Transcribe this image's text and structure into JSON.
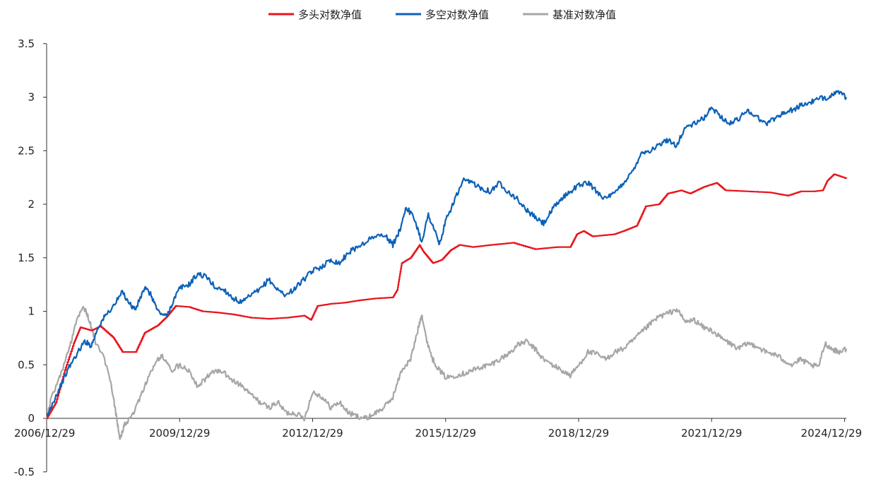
{
  "chart_data": {
    "type": "line",
    "title": "",
    "xlabel": "",
    "ylabel": "",
    "ylim": [
      -0.5,
      3.5
    ],
    "yticks": [
      "-0.5",
      "0",
      "0.5",
      "1",
      "1.5",
      "2",
      "2.5",
      "3",
      "3.5"
    ],
    "xlim": [
      2006.99,
      2025.03
    ],
    "xticks": [
      {
        "label": "2006/12/29",
        "x": 2006.99
      },
      {
        "label": "2009/12/29",
        "x": 2009.99
      },
      {
        "label": "2012/12/29",
        "x": 2012.99
      },
      {
        "label": "2015/12/29",
        "x": 2015.99
      },
      {
        "label": "2018/12/29",
        "x": 2018.99
      },
      {
        "label": "2021/12/29",
        "x": 2021.99
      },
      {
        "label": "2024/12/29",
        "x": 2024.99
      }
    ],
    "legend": {
      "position": "top-center"
    },
    "grid": false,
    "series": [
      {
        "name": "多头对数净值",
        "color": "#e8141b",
        "points": [
          [
            2006.99,
            0.0
          ],
          [
            2007.2,
            0.15
          ],
          [
            2007.4,
            0.45
          ],
          [
            2007.6,
            0.7
          ],
          [
            2007.75,
            0.85
          ],
          [
            2008.0,
            0.82
          ],
          [
            2008.2,
            0.86
          ],
          [
            2008.5,
            0.75
          ],
          [
            2008.7,
            0.62
          ],
          [
            2009.0,
            0.62
          ],
          [
            2009.2,
            0.8
          ],
          [
            2009.5,
            0.87
          ],
          [
            2009.7,
            0.95
          ],
          [
            2009.9,
            1.05
          ],
          [
            2010.2,
            1.04
          ],
          [
            2010.5,
            1.0
          ],
          [
            2010.8,
            0.99
          ],
          [
            2011.2,
            0.97
          ],
          [
            2011.6,
            0.94
          ],
          [
            2012.0,
            0.93
          ],
          [
            2012.4,
            0.94
          ],
          [
            2012.8,
            0.96
          ],
          [
            2012.95,
            0.92
          ],
          [
            2013.1,
            1.05
          ],
          [
            2013.4,
            1.07
          ],
          [
            2013.7,
            1.08
          ],
          [
            2014.0,
            1.1
          ],
          [
            2014.4,
            1.12
          ],
          [
            2014.8,
            1.13
          ],
          [
            2014.9,
            1.2
          ],
          [
            2015.0,
            1.45
          ],
          [
            2015.2,
            1.5
          ],
          [
            2015.4,
            1.62
          ],
          [
            2015.5,
            1.55
          ],
          [
            2015.7,
            1.45
          ],
          [
            2015.9,
            1.48
          ],
          [
            2016.1,
            1.57
          ],
          [
            2016.3,
            1.62
          ],
          [
            2016.6,
            1.6
          ],
          [
            2017.0,
            1.62
          ],
          [
            2017.5,
            1.64
          ],
          [
            2018.0,
            1.58
          ],
          [
            2018.5,
            1.6
          ],
          [
            2018.8,
            1.6
          ],
          [
            2018.95,
            1.72
          ],
          [
            2019.1,
            1.75
          ],
          [
            2019.3,
            1.7
          ],
          [
            2019.8,
            1.72
          ],
          [
            2020.0,
            1.75
          ],
          [
            2020.3,
            1.8
          ],
          [
            2020.5,
            1.98
          ],
          [
            2020.8,
            2.0
          ],
          [
            2021.0,
            2.1
          ],
          [
            2021.3,
            2.13
          ],
          [
            2021.5,
            2.1
          ],
          [
            2021.8,
            2.16
          ],
          [
            2022.1,
            2.2
          ],
          [
            2022.3,
            2.13
          ],
          [
            2022.8,
            2.12
          ],
          [
            2023.3,
            2.11
          ],
          [
            2023.7,
            2.08
          ],
          [
            2024.0,
            2.12
          ],
          [
            2024.3,
            2.12
          ],
          [
            2024.5,
            2.13
          ],
          [
            2024.6,
            2.22
          ],
          [
            2024.75,
            2.28
          ],
          [
            2025.03,
            2.24
          ]
        ]
      },
      {
        "name": "多空对数净值",
        "color": "#0c61b7",
        "points": [
          [
            2006.99,
            0.0
          ],
          [
            2007.1,
            0.12
          ],
          [
            2007.3,
            0.3
          ],
          [
            2007.5,
            0.48
          ],
          [
            2007.7,
            0.62
          ],
          [
            2007.85,
            0.72
          ],
          [
            2008.0,
            0.68
          ],
          [
            2008.15,
            0.85
          ],
          [
            2008.3,
            0.95
          ],
          [
            2008.5,
            1.05
          ],
          [
            2008.7,
            1.18
          ],
          [
            2008.9,
            1.05
          ],
          [
            2009.0,
            1.02
          ],
          [
            2009.2,
            1.22
          ],
          [
            2009.35,
            1.15
          ],
          [
            2009.5,
            1.0
          ],
          [
            2009.7,
            0.95
          ],
          [
            2009.85,
            1.1
          ],
          [
            2010.0,
            1.22
          ],
          [
            2010.2,
            1.25
          ],
          [
            2010.4,
            1.35
          ],
          [
            2010.6,
            1.32
          ],
          [
            2010.8,
            1.22
          ],
          [
            2011.0,
            1.2
          ],
          [
            2011.2,
            1.12
          ],
          [
            2011.4,
            1.08
          ],
          [
            2011.6,
            1.15
          ],
          [
            2011.8,
            1.2
          ],
          [
            2012.0,
            1.3
          ],
          [
            2012.2,
            1.2
          ],
          [
            2012.4,
            1.15
          ],
          [
            2012.6,
            1.22
          ],
          [
            2012.8,
            1.3
          ],
          [
            2013.0,
            1.38
          ],
          [
            2013.2,
            1.42
          ],
          [
            2013.4,
            1.48
          ],
          [
            2013.6,
            1.45
          ],
          [
            2013.8,
            1.55
          ],
          [
            2014.0,
            1.6
          ],
          [
            2014.3,
            1.68
          ],
          [
            2014.6,
            1.72
          ],
          [
            2014.8,
            1.62
          ],
          [
            2014.95,
            1.75
          ],
          [
            2015.1,
            1.98
          ],
          [
            2015.3,
            1.85
          ],
          [
            2015.45,
            1.65
          ],
          [
            2015.6,
            1.9
          ],
          [
            2015.75,
            1.75
          ],
          [
            2015.85,
            1.62
          ],
          [
            2016.0,
            1.85
          ],
          [
            2016.2,
            2.05
          ],
          [
            2016.4,
            2.22
          ],
          [
            2016.6,
            2.2
          ],
          [
            2016.8,
            2.15
          ],
          [
            2017.0,
            2.12
          ],
          [
            2017.2,
            2.2
          ],
          [
            2017.4,
            2.12
          ],
          [
            2017.6,
            2.05
          ],
          [
            2017.8,
            1.95
          ],
          [
            2018.0,
            1.88
          ],
          [
            2018.2,
            1.82
          ],
          [
            2018.4,
            1.95
          ],
          [
            2018.6,
            2.05
          ],
          [
            2018.8,
            2.12
          ],
          [
            2019.0,
            2.18
          ],
          [
            2019.2,
            2.2
          ],
          [
            2019.4,
            2.12
          ],
          [
            2019.6,
            2.05
          ],
          [
            2019.8,
            2.1
          ],
          [
            2020.0,
            2.2
          ],
          [
            2020.2,
            2.3
          ],
          [
            2020.4,
            2.48
          ],
          [
            2020.6,
            2.5
          ],
          [
            2020.8,
            2.55
          ],
          [
            2021.0,
            2.6
          ],
          [
            2021.2,
            2.55
          ],
          [
            2021.4,
            2.72
          ],
          [
            2021.6,
            2.75
          ],
          [
            2021.8,
            2.8
          ],
          [
            2022.0,
            2.9
          ],
          [
            2022.2,
            2.82
          ],
          [
            2022.4,
            2.75
          ],
          [
            2022.6,
            2.8
          ],
          [
            2022.8,
            2.88
          ],
          [
            2023.0,
            2.82
          ],
          [
            2023.2,
            2.75
          ],
          [
            2023.4,
            2.8
          ],
          [
            2023.6,
            2.85
          ],
          [
            2023.8,
            2.88
          ],
          [
            2024.0,
            2.92
          ],
          [
            2024.2,
            2.95
          ],
          [
            2024.4,
            2.98
          ],
          [
            2024.6,
            3.0
          ],
          [
            2024.8,
            3.05
          ],
          [
            2025.03,
            3.0
          ]
        ]
      },
      {
        "name": "基准对数净值",
        "color": "#a6a6a6",
        "points": [
          [
            2006.99,
            0.0
          ],
          [
            2007.1,
            0.2
          ],
          [
            2007.3,
            0.4
          ],
          [
            2007.5,
            0.65
          ],
          [
            2007.65,
            0.9
          ],
          [
            2007.8,
            1.05
          ],
          [
            2007.9,
            0.98
          ],
          [
            2008.0,
            0.85
          ],
          [
            2008.1,
            0.7
          ],
          [
            2008.3,
            0.55
          ],
          [
            2008.45,
            0.3
          ],
          [
            2008.55,
            0.05
          ],
          [
            2008.65,
            -0.2
          ],
          [
            2008.75,
            -0.05
          ],
          [
            2008.9,
            0.0
          ],
          [
            2009.1,
            0.2
          ],
          [
            2009.3,
            0.4
          ],
          [
            2009.5,
            0.55
          ],
          [
            2009.6,
            0.58
          ],
          [
            2009.8,
            0.45
          ],
          [
            2010.0,
            0.5
          ],
          [
            2010.2,
            0.45
          ],
          [
            2010.4,
            0.3
          ],
          [
            2010.6,
            0.38
          ],
          [
            2010.8,
            0.45
          ],
          [
            2011.0,
            0.42
          ],
          [
            2011.2,
            0.35
          ],
          [
            2011.4,
            0.3
          ],
          [
            2011.6,
            0.22
          ],
          [
            2011.8,
            0.15
          ],
          [
            2012.0,
            0.1
          ],
          [
            2012.2,
            0.15
          ],
          [
            2012.4,
            0.05
          ],
          [
            2012.6,
            0.05
          ],
          [
            2012.8,
            0.0
          ],
          [
            2013.0,
            0.25
          ],
          [
            2013.2,
            0.2
          ],
          [
            2013.4,
            0.1
          ],
          [
            2013.6,
            0.15
          ],
          [
            2013.8,
            0.05
          ],
          [
            2014.0,
            0.02
          ],
          [
            2014.2,
            0.0
          ],
          [
            2014.4,
            0.05
          ],
          [
            2014.6,
            0.1
          ],
          [
            2014.8,
            0.2
          ],
          [
            2015.0,
            0.45
          ],
          [
            2015.2,
            0.55
          ],
          [
            2015.35,
            0.8
          ],
          [
            2015.45,
            0.98
          ],
          [
            2015.55,
            0.75
          ],
          [
            2015.7,
            0.55
          ],
          [
            2015.85,
            0.45
          ],
          [
            2016.0,
            0.38
          ],
          [
            2016.2,
            0.4
          ],
          [
            2016.4,
            0.42
          ],
          [
            2016.6,
            0.45
          ],
          [
            2016.8,
            0.48
          ],
          [
            2017.0,
            0.5
          ],
          [
            2017.2,
            0.55
          ],
          [
            2017.4,
            0.6
          ],
          [
            2017.6,
            0.68
          ],
          [
            2017.8,
            0.72
          ],
          [
            2018.0,
            0.65
          ],
          [
            2018.2,
            0.55
          ],
          [
            2018.4,
            0.5
          ],
          [
            2018.6,
            0.45
          ],
          [
            2018.8,
            0.4
          ],
          [
            2019.0,
            0.5
          ],
          [
            2019.2,
            0.62
          ],
          [
            2019.4,
            0.6
          ],
          [
            2019.6,
            0.55
          ],
          [
            2019.8,
            0.62
          ],
          [
            2020.0,
            0.65
          ],
          [
            2020.2,
            0.72
          ],
          [
            2020.4,
            0.8
          ],
          [
            2020.6,
            0.88
          ],
          [
            2020.8,
            0.95
          ],
          [
            2021.0,
            0.98
          ],
          [
            2021.2,
            1.02
          ],
          [
            2021.4,
            0.9
          ],
          [
            2021.6,
            0.92
          ],
          [
            2021.8,
            0.85
          ],
          [
            2022.0,
            0.82
          ],
          [
            2022.2,
            0.75
          ],
          [
            2022.4,
            0.7
          ],
          [
            2022.6,
            0.65
          ],
          [
            2022.8,
            0.7
          ],
          [
            2023.0,
            0.68
          ],
          [
            2023.2,
            0.62
          ],
          [
            2023.4,
            0.6
          ],
          [
            2023.6,
            0.55
          ],
          [
            2023.8,
            0.5
          ],
          [
            2024.0,
            0.55
          ],
          [
            2024.2,
            0.5
          ],
          [
            2024.4,
            0.48
          ],
          [
            2024.55,
            0.7
          ],
          [
            2024.7,
            0.65
          ],
          [
            2024.85,
            0.62
          ],
          [
            2025.03,
            0.65
          ]
        ]
      }
    ]
  }
}
